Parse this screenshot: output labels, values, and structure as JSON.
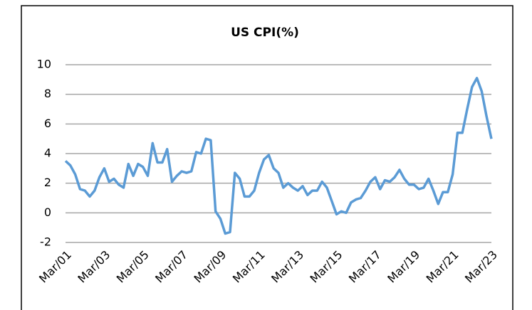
{
  "chart_data": {
    "type": "line",
    "title": "US CPI(%)",
    "categories": [
      "Mar/01",
      null,
      null,
      null,
      null,
      null,
      null,
      null,
      "Mar/03",
      null,
      null,
      null,
      null,
      null,
      null,
      null,
      "Mar/05",
      null,
      null,
      null,
      null,
      null,
      null,
      null,
      "Mar/07",
      null,
      null,
      null,
      null,
      null,
      null,
      null,
      "Mar/09",
      null,
      null,
      null,
      null,
      null,
      null,
      null,
      "Mar/11",
      null,
      null,
      null,
      null,
      null,
      null,
      null,
      "Mar/13",
      null,
      null,
      null,
      null,
      null,
      null,
      null,
      "Mar/15",
      null,
      null,
      null,
      null,
      null,
      null,
      null,
      "Mar/17",
      null,
      null,
      null,
      null,
      null,
      null,
      null,
      "Mar/19",
      null,
      null,
      null,
      null,
      null,
      null,
      null,
      "Mar/21",
      null,
      null,
      null,
      null,
      null,
      null,
      null,
      "Mar/23"
    ],
    "series": [
      {
        "name": "US CPI",
        "color": "#5b9bd5",
        "values": [
          3.5,
          3.2,
          2.6,
          1.6,
          1.5,
          1.1,
          1.5,
          2.4,
          3.0,
          2.1,
          2.3,
          1.9,
          1.7,
          3.3,
          2.5,
          3.3,
          3.1,
          2.5,
          4.7,
          3.4,
          3.4,
          4.3,
          2.1,
          2.5,
          2.8,
          2.7,
          2.8,
          4.1,
          4.0,
          5.0,
          4.9,
          0.1,
          -0.4,
          -1.4,
          -1.3,
          2.7,
          2.3,
          1.1,
          1.1,
          1.5,
          2.7,
          3.6,
          3.9,
          3.0,
          2.7,
          1.7,
          2.0,
          1.7,
          1.5,
          1.8,
          1.2,
          1.5,
          1.5,
          2.1,
          1.7,
          0.8,
          -0.1,
          0.1,
          0.0,
          0.7,
          0.9,
          1.0,
          1.5,
          2.1,
          2.4,
          1.6,
          2.2,
          2.1,
          2.4,
          2.9,
          2.3,
          1.9,
          1.9,
          1.6,
          1.7,
          2.3,
          1.5,
          0.6,
          1.4,
          1.4,
          2.6,
          5.4,
          5.4,
          7.0,
          8.5,
          9.1,
          8.2,
          6.5,
          5.0
        ]
      }
    ],
    "ylim": [
      -2,
      10
    ],
    "yticks": [
      10,
      8,
      6,
      4,
      2,
      0,
      -2
    ],
    "grid": true
  }
}
